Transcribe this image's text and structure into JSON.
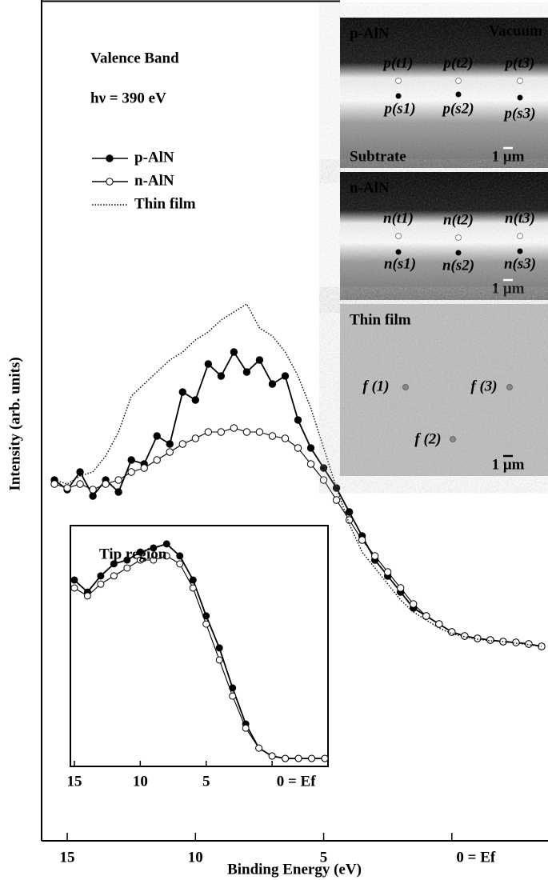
{
  "chart_data": [
    {
      "type": "line",
      "annotations": [
        "Valence Band",
        "hν = 390 eV"
      ],
      "x_label": "Binding Energy (eV)",
      "y_label": "Intensity (arb. units)",
      "x": [
        15.5,
        15,
        14.5,
        14,
        13.5,
        13,
        12.5,
        12,
        11.5,
        11,
        10.5,
        10,
        9.5,
        9,
        8.5,
        8,
        7.5,
        7,
        6.5,
        6,
        5.5,
        5,
        4.5,
        4,
        3.5,
        3,
        2.5,
        2,
        1.5,
        1,
        0.5,
        0,
        -0.5,
        -1,
        -1.5,
        -2,
        -2.5,
        -3,
        -3.5
      ],
      "series": [
        {
          "name": "p-AlN",
          "color": "#000",
          "marker": "filled",
          "dash": "solid",
          "values": [
            45.1,
            43.9,
            46.1,
            43.1,
            45.1,
            43.6,
            47.6,
            47.1,
            50.6,
            49.6,
            56.1,
            55.1,
            59.6,
            58.1,
            61.1,
            58.6,
            60.1,
            57.1,
            58.1,
            52.6,
            49.1,
            46.6,
            44.1,
            41.1,
            38.1,
            35.1,
            33.1,
            31.1,
            29.1,
            28.1,
            27.1,
            26.1,
            25.6,
            25.3,
            25.1,
            24.9,
            24.8,
            24.6,
            24.3
          ]
        },
        {
          "name": "n-AlN",
          "color": "#000",
          "marker": "open",
          "dash": "solid",
          "values": [
            44.6,
            44.1,
            44.6,
            43.9,
            44.6,
            45.1,
            46.1,
            46.6,
            47.6,
            48.6,
            49.6,
            50.3,
            51.1,
            51.1,
            51.6,
            51.1,
            51.1,
            50.6,
            50.3,
            49.1,
            47.1,
            45.1,
            42.6,
            40.1,
            37.6,
            35.6,
            33.6,
            31.6,
            29.6,
            28.1,
            27.1,
            26.1,
            25.6,
            25.3,
            25.1,
            24.9,
            24.8,
            24.6,
            24.3
          ]
        },
        {
          "name": "Thin film",
          "color": "#000",
          "marker": "none",
          "dash": "dotted",
          "values": [
            45.1,
            44.6,
            45.6,
            46.1,
            48.1,
            51.1,
            55.6,
            57.1,
            58.6,
            60.1,
            61.1,
            62.6,
            63.6,
            65.1,
            66.1,
            67.1,
            64.1,
            63.1,
            61.1,
            58.1,
            54.1,
            49.1,
            44.1,
            39.6,
            36.1,
            34.1,
            32.1,
            30.1,
            28.6,
            27.6,
            26.6,
            25.9,
            25.5,
            25.2,
            25.0,
            24.9,
            24.7,
            24.5,
            24.3
          ]
        }
      ],
      "xlim": [
        16,
        -3.75
      ],
      "xticks": [
        15,
        10,
        5,
        {
          "value": 0,
          "label": "0 = Ef"
        }
      ],
      "ylim": [
        0,
        105.1
      ],
      "legend": "upper left"
    },
    {
      "type": "line",
      "title": "Tip region",
      "x": [
        15,
        14,
        13,
        12,
        11,
        10,
        9,
        8,
        7,
        6,
        5,
        4,
        3,
        2,
        1,
        0,
        -1,
        -2,
        -3,
        -4
      ],
      "series": [
        {
          "color": "#000",
          "marker": "filled",
          "dash": "solid",
          "values": [
            77.4,
            72.4,
            79.1,
            84.1,
            85.7,
            89.0,
            90.7,
            92.4,
            87.4,
            77.4,
            62.5,
            49.2,
            32.6,
            17.6,
            7.6,
            4.3,
            3.3,
            3.3,
            3.3,
            3.3
          ]
        },
        {
          "color": "#000",
          "marker": "open",
          "dash": "solid",
          "values": [
            74.1,
            70.8,
            75.7,
            79.1,
            82.4,
            85.7,
            85.7,
            87.4,
            84.1,
            74.1,
            59.1,
            44.2,
            29.2,
            15.9,
            7.6,
            4.3,
            3.3,
            3.3,
            3.3,
            3.3
          ]
        }
      ],
      "xlim": [
        15.3,
        -4.24
      ],
      "xticks": [
        15,
        10,
        5,
        {
          "value": 0,
          "label": "0 = Ef"
        }
      ],
      "ylim": [
        0,
        100
      ]
    }
  ],
  "images": [
    {
      "title": "p-AlN",
      "corner": "Vacuum",
      "labels": [
        "p(t1)",
        "p(t2)",
        "p(t3)",
        "p(s1)",
        "p(s2)",
        "p(s3)"
      ],
      "region": "Subtrate",
      "scale": "1 μm"
    },
    {
      "title": "n-AlN",
      "labels": [
        "n(t1)",
        "n(t2)",
        "n(t3)",
        "n(s1)",
        "n(s2)",
        "n(s3)"
      ],
      "scale": "1 μm"
    },
    {
      "title": "Thin film",
      "labels": [
        "f (1)",
        "f (3)",
        "f (2)"
      ],
      "scale": "1 μm"
    }
  ]
}
